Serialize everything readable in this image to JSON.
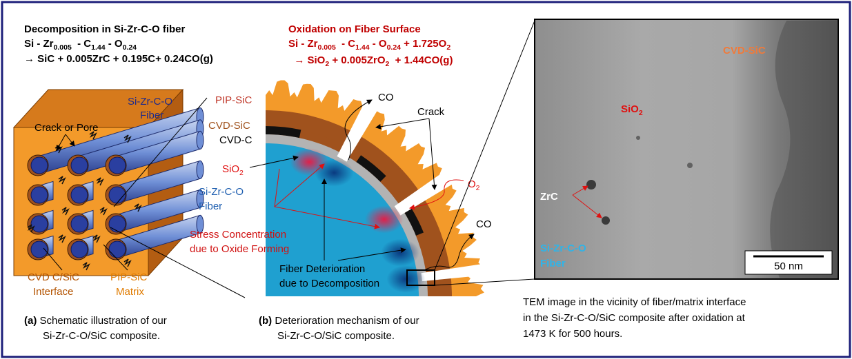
{
  "panel_a": {
    "heading": "Decomposition in Si-Zr-C-O fiber",
    "formula": [
      "Si - Zr",
      "0.005",
      "  - C",
      "1.44",
      " - O",
      "0.24"
    ],
    "reaction": "→ SiC + 0.005ZrC + 0.195C+ 0.24CO(g)",
    "labels": {
      "fiber": [
        "Si-Zr-C-O",
        "Fiber"
      ],
      "crack": "Crack or Pore",
      "interface": [
        "CVD C/SiC",
        "Interface"
      ],
      "matrix": [
        "PIP-SiC",
        "Matrix"
      ]
    },
    "caption": {
      "tag": "(a)",
      "lines": [
        "Schematic illustration of our",
        "Si-Zr-C-O/SiC composite."
      ]
    }
  },
  "panel_b": {
    "heading": "Oxidation on Fiber Surface",
    "formula": [
      "Si - Zr",
      "0.005",
      "  - C",
      "1.44",
      " - O",
      "0.24",
      " + 1.725O",
      "2"
    ],
    "reaction": [
      "  → SiO",
      "2",
      " + 0.005ZrO",
      "2",
      "  + 1.44CO(g)"
    ],
    "labels": {
      "pip_sic": "PIP-SiC",
      "cvd_sic": "CVD-SiC",
      "cvd_c": "CVD-C",
      "sio2": [
        "SiO",
        "2"
      ],
      "fiber": [
        "Si-Zr-C-O",
        "Fiber"
      ],
      "co_top": "CO",
      "crack": "Crack",
      "o2": [
        "O",
        "2"
      ],
      "co_right": "CO",
      "stress": [
        "Stress Concentration",
        "due to Oxide Forming"
      ],
      "deterioration": [
        "Fiber Deterioration",
        "due to Decomposition"
      ]
    },
    "caption": {
      "tag": "(b)",
      "lines": [
        "Deterioration mechanism of our",
        "Si-Zr-C-O/SiC composite."
      ]
    }
  },
  "panel_c": {
    "labels": {
      "cvd_sic": "CVD-SiC",
      "sio2": [
        "SiO",
        "2"
      ],
      "zrc": "ZrC",
      "fiber": [
        "Si-Zr-C-O",
        "Fiber"
      ],
      "scale": "50 nm"
    },
    "caption": [
      "TEM image in the vicinity of fiber/matrix interface",
      "in the Si-Zr-C-O/SiC composite after oxidation at",
      "1473 K for 500 hours."
    ]
  }
}
